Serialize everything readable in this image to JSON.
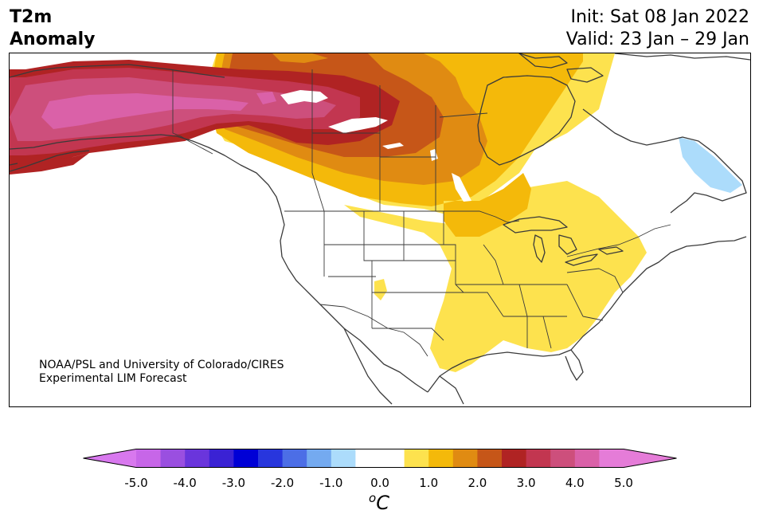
{
  "title": {
    "line1": "T2m",
    "line2": "Anomaly"
  },
  "dates": {
    "init": "Init: Sat 08 Jan 2022",
    "valid": "Valid: 23 Jan – 29 Jan"
  },
  "credit": {
    "line1": "NOAA/PSL and University of Colorado/CIRES",
    "line2": "Experimental LIM Forecast"
  },
  "colorbar": {
    "unit_base": "C",
    "unit_sup": "o",
    "ticks": [
      "-5.0",
      "-4.0",
      "-3.0",
      "-2.0",
      "-1.0",
      "0.0",
      "1.0",
      "2.0",
      "3.0",
      "4.0",
      "5.0"
    ],
    "colors": [
      "#c766e8",
      "#9a4fe0",
      "#6a35dc",
      "#3a22d4",
      "#0000d6",
      "#2836dd",
      "#4c6ee6",
      "#74aaf0",
      "#acdcfb",
      "#ffffff",
      "#ffffff",
      "#fde24e",
      "#f4b90a",
      "#e08b12",
      "#c65618",
      "#b02323",
      "#c23650",
      "#cd4f7c",
      "#da61a8",
      "#e57cd8"
    ],
    "extend_low": "#d878ee",
    "extend_high": "#e57cd8"
  },
  "map": {
    "region": "North America",
    "colors": {
      "yellow": "#fde24e",
      "gold": "#f4b90a",
      "orange": "#e08b12",
      "dark_orange": "#c65618",
      "red": "#b02323",
      "crimson": "#c23650",
      "rose": "#cd4f7c",
      "pink": "#da61a8",
      "light_blue": "#acdcfb",
      "coast": "#3a3a3a"
    }
  }
}
